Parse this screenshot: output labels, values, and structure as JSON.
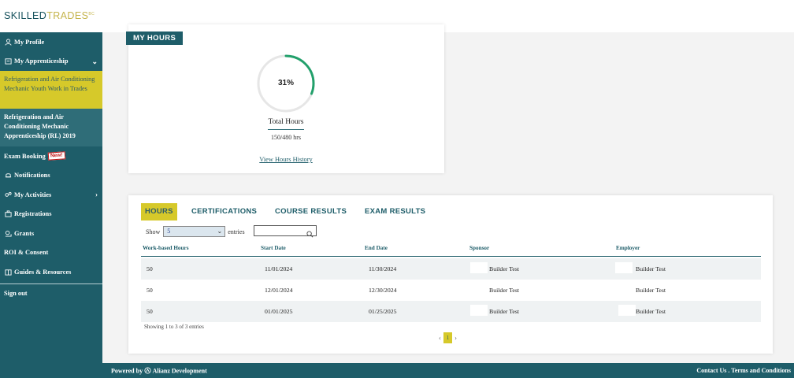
{
  "header": {
    "logo_main": "SKILLED",
    "logo_accent": "TRADES",
    "logo_sup": "BC"
  },
  "sidebar": {
    "items": [
      {
        "label": "My Profile",
        "icon": "person-icon"
      },
      {
        "label": "My Apprenticeship",
        "icon": "apprenticeship-icon",
        "chevron": "⌄"
      },
      {
        "label": "Exam Booking",
        "badge": "New!"
      },
      {
        "label": "Notifications",
        "icon": "bell-icon"
      },
      {
        "label": "My Activities",
        "icon": "activities-icon",
        "chevron": "›"
      },
      {
        "label": "Registrations",
        "icon": "registrations-icon"
      },
      {
        "label": "Grants",
        "icon": "grants-icon"
      },
      {
        "label": "ROI & Consent"
      },
      {
        "label": "Guides & Resources",
        "icon": "guides-icon"
      },
      {
        "label": "Sign out"
      }
    ],
    "sub_items": [
      {
        "label": "Refrigeration and Air Conditioning Mechanic Youth Work in Trades"
      },
      {
        "label": "Refrigeration and Air Conditioning Mechanic Apprenticeship (RL) 2019"
      }
    ]
  },
  "hours_card": {
    "title": "MY HOURS",
    "percent_label": "31%",
    "percent": 31,
    "total_label": "Total Hours",
    "hours_value": "150/480 hrs",
    "history_link": "View Hours History"
  },
  "tabs": [
    {
      "label": "HOURS"
    },
    {
      "label": "CERTIFICATIONS"
    },
    {
      "label": "COURSE RESULTS"
    },
    {
      "label": "EXAM RESULTS"
    }
  ],
  "table_controls": {
    "show_label": "Show",
    "entries_value": "5",
    "entries_label": "entries",
    "info": "Showing 1 to 3 of 3 entries",
    "page": "1",
    "prev": "‹",
    "next": "›"
  },
  "table": {
    "columns": [
      "Work-based Hours",
      "Start Date",
      "End Date",
      "Sponsor",
      "Employer"
    ],
    "rows": [
      {
        "hours": "50",
        "start": "11/01/2024",
        "end": "11/30/2024",
        "sponsor": "Builder Test",
        "employer": "Builder Test"
      },
      {
        "hours": "50",
        "start": "12/01/2024",
        "end": "12/30/2024",
        "sponsor": "Builder Test",
        "employer": "Builder Test"
      },
      {
        "hours": "50",
        "start": "01/01/2025",
        "end": "01/25/2025",
        "sponsor": "Builder Test",
        "employer": "Builder Test"
      }
    ]
  },
  "footer": {
    "powered_prefix": "Powered by",
    "powered_name": "Alianz Development",
    "contact": "Contact Us",
    "sep": " . ",
    "terms": "Terms and Conditions"
  },
  "colors": {
    "brand_teal": "#1e5d69",
    "accent_gold": "#d6c92a",
    "progress_green": "#22a06b"
  }
}
